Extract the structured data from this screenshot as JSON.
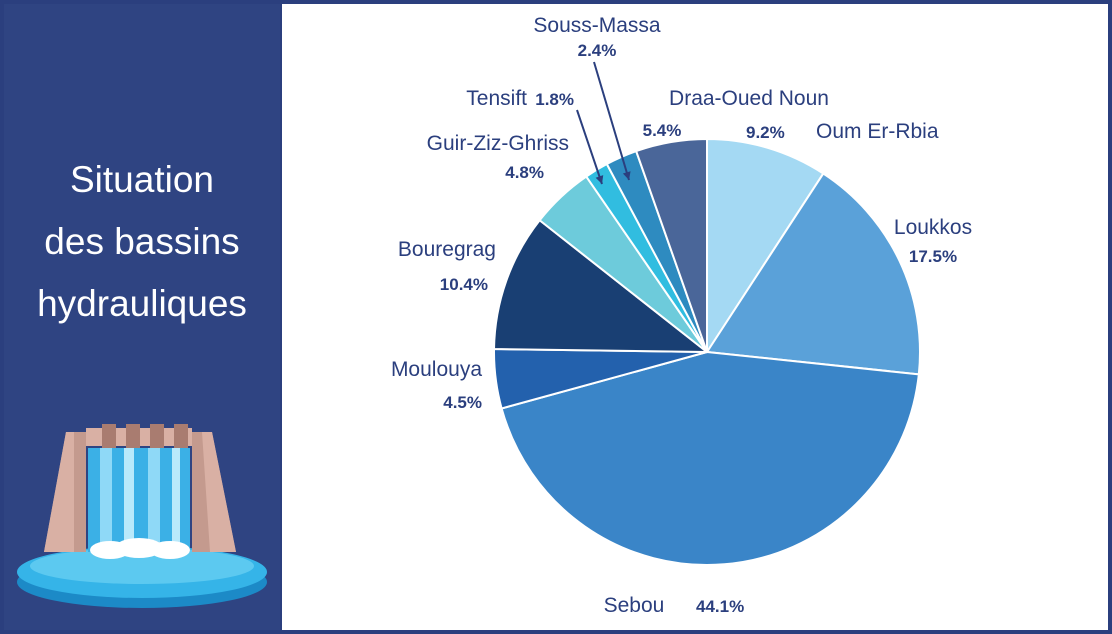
{
  "sidebar": {
    "title_lines": [
      "Situation",
      "des bassins",
      "hydrauliques"
    ]
  },
  "colors": {
    "background": "#2f4482",
    "text": "#2b3f7e",
    "panel": "#ffffff"
  },
  "icons": {
    "illustration": "dam-waterfall-icon"
  },
  "chart_data": {
    "type": "pie",
    "title": "",
    "start_angle_deg": 0,
    "direction": "clockwise",
    "slices": [
      {
        "name": "Oum Er-Rbia",
        "value": 9.2,
        "label": "9.2%",
        "color": "#a4d9f3"
      },
      {
        "name": "Loukkos",
        "value": 17.5,
        "label": "17.5%",
        "color": "#5aa1d9"
      },
      {
        "name": "Sebou",
        "value": 44.1,
        "label": "44.1%",
        "color": "#3a85c8"
      },
      {
        "name": "Moulouya",
        "value": 4.5,
        "label": "4.5%",
        "color": "#2361ad"
      },
      {
        "name": "Bouregrag",
        "value": 10.4,
        "label": "10.4%",
        "color": "#193f73"
      },
      {
        "name": "Guir-Ziz-Ghriss",
        "value": 4.8,
        "label": "4.8%",
        "color": "#6dcbdb"
      },
      {
        "name": "Tensift",
        "value": 1.8,
        "label": "1.8%",
        "color": "#31bde0"
      },
      {
        "name": "Souss-Massa",
        "value": 2.4,
        "label": "2.4%",
        "color": "#2e8bc0"
      },
      {
        "name": "Draa-Oued Noun",
        "value": 5.4,
        "label": "5.4%",
        "color": "#4a6699"
      }
    ]
  }
}
